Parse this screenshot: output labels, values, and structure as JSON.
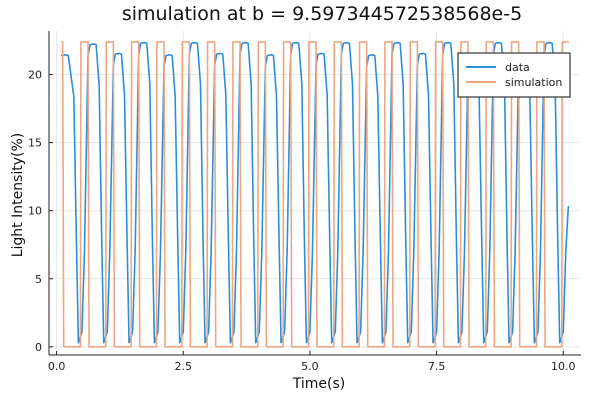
{
  "chart_data": {
    "type": "line",
    "title": "simulation at b = 9.597344572538568e-5",
    "xlabel": "Time(s)",
    "ylabel": "Light Intensity(%)",
    "xlim": [
      -0.15,
      10.35
    ],
    "ylim": [
      -0.6,
      23.2
    ],
    "xticks": [
      0,
      2.5,
      5,
      7.5,
      10
    ],
    "xtick_labels": [
      "0.0",
      "2.5",
      "5.0",
      "7.5",
      "10.0"
    ],
    "yticks": [
      0,
      5,
      10,
      15,
      20
    ],
    "ytick_labels": [
      "0",
      "5",
      "10",
      "15",
      "20"
    ],
    "grid": true,
    "legend_position": "top-right",
    "series": [
      {
        "name": "data",
        "color": "#2b8fd8",
        "style": "smooth-wave",
        "start": 0.1,
        "end": 10.1,
        "period": 0.5,
        "high_values": [
          21.4,
          22.2,
          21.5,
          22.3,
          21.4,
          22.3,
          21.5,
          22.3,
          21.4,
          22.3,
          21.5,
          22.3,
          21.4,
          22.3,
          21.5,
          22.3,
          21.4,
          22.3,
          21.5,
          22.3
        ],
        "low_value": 0.3,
        "end_value": 10.3
      },
      {
        "name": "simulation",
        "color": "#f0a582",
        "style": "square-wave",
        "start": 0.1,
        "end": 10.1,
        "period": 0.5,
        "high_value": 22.4,
        "low_value": 0.0
      }
    ]
  }
}
